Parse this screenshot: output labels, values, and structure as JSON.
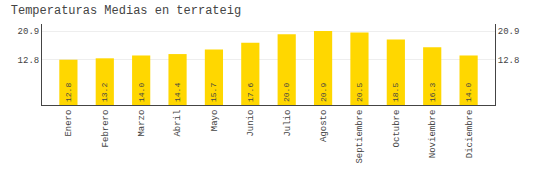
{
  "chart_data": {
    "type": "bar",
    "title": "Temperaturas Medias en terrateig",
    "categories": [
      "Enero",
      "Febrero",
      "Marzo",
      "Abril",
      "Mayo",
      "Junio",
      "Julio",
      "Agosto",
      "Septiembre",
      "Octubre",
      "Noviembre",
      "Diciembre"
    ],
    "values": [
      12.8,
      13.2,
      14.0,
      14.4,
      15.7,
      17.6,
      20.0,
      20.9,
      20.5,
      18.5,
      16.3,
      14.0
    ],
    "value_labels": [
      "12.8",
      "13.2",
      "14.0",
      "14.4",
      "15.7",
      "17.6",
      "20.0",
      "20.9",
      "20.5",
      "18.5",
      "16.3",
      "14.0"
    ],
    "color": "#FFD700",
    "ylim": [
      0.0,
      22.9
    ],
    "yticks": [
      12.8,
      20.9
    ],
    "y2lim": [
      0.0,
      22.9
    ],
    "y2ticks": [
      12.8,
      20.9
    ],
    "grid": true,
    "data_labels": true
  }
}
